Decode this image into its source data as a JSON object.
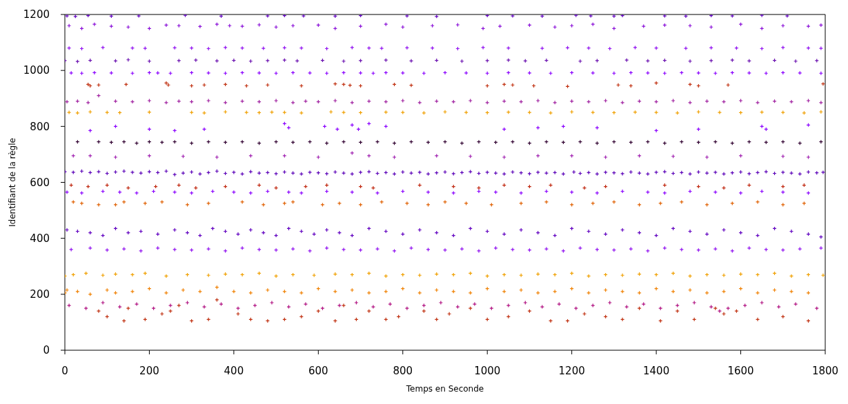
{
  "chart_data": {
    "type": "scatter",
    "xlabel": "Temps en Seconde",
    "ylabel": "Identifiant de la règle",
    "xlim": [
      0,
      1800
    ],
    "ylim": [
      0,
      1200
    ],
    "xticks": [
      0,
      200,
      400,
      600,
      800,
      1000,
      1200,
      1400,
      1600,
      1800
    ],
    "yticks": [
      0,
      200,
      400,
      600,
      800,
      1000,
      1200
    ],
    "marker": "cross",
    "series": [
      {
        "color": "#6000c0",
        "x": [
          5,
          25,
          55,
          110,
          175,
          285,
          370,
          480,
          520,
          565,
          640,
          700,
          810,
          880,
          1000,
          1060,
          1130,
          1210,
          1245,
          1300,
          1320,
          1420,
          1470,
          1530,
          1580,
          1650,
          1710
        ],
        "values": [
          1195,
          1193,
          1196,
          1194,
          1195,
          1197,
          1194,
          1195,
          1196,
          1195,
          1194,
          1196,
          1195,
          1193,
          1196,
          1195,
          1194,
          1197,
          1195,
          1194,
          1196,
          1195,
          1194,
          1196,
          1195,
          1197,
          1195
        ]
      },
      {
        "color": "#8a10d8",
        "x": [
          10,
          40,
          70,
          110,
          150,
          200,
          240,
          270,
          320,
          360,
          390,
          420,
          460,
          500,
          540,
          600,
          640,
          700,
          760,
          800,
          870,
          930,
          990,
          1030,
          1100,
          1160,
          1200,
          1250,
          1300,
          1370,
          1420,
          1480,
          1530,
          1600,
          1650,
          1700,
          1760,
          1790
        ],
        "values": [
          1160,
          1150,
          1165,
          1158,
          1155,
          1150,
          1162,
          1160,
          1157,
          1165,
          1160,
          1158,
          1163,
          1155,
          1160,
          1162,
          1150,
          1158,
          1165,
          1155,
          1160,
          1163,
          1150,
          1158,
          1162,
          1155,
          1160,
          1165,
          1150,
          1158,
          1162,
          1160,
          1155,
          1165,
          1150,
          1160,
          1158,
          1162
        ]
      },
      {
        "color": "#9010f0",
        "x": [
          10,
          40,
          90,
          160,
          190,
          260,
          300,
          340,
          380,
          420,
          470,
          520,
          560,
          620,
          680,
          720,
          750,
          810,
          870,
          930,
          990,
          1050,
          1130,
          1190,
          1240,
          1290,
          1350,
          1400,
          1470,
          1530,
          1590,
          1650,
          1700,
          1760,
          1790
        ],
        "values": [
          1080,
          1078,
          1082,
          1080,
          1079,
          1081,
          1080,
          1078,
          1082,
          1080,
          1079,
          1081,
          1080,
          1078,
          1082,
          1080,
          1079,
          1081,
          1080,
          1078,
          1082,
          1080,
          1079,
          1081,
          1080,
          1078,
          1082,
          1080,
          1079,
          1081,
          1080,
          1078,
          1082,
          1080,
          1079
        ]
      },
      {
        "color": "#6a10b0",
        "x": [
          0,
          30,
          60,
          120,
          150,
          200,
          270,
          310,
          360,
          400,
          440,
          480,
          520,
          550,
          610,
          660,
          700,
          760,
          820,
          880,
          940,
          1000,
          1050,
          1090,
          1140,
          1220,
          1260,
          1330,
          1380,
          1420,
          1480,
          1530,
          1580,
          1620,
          1680,
          1730,
          1780
        ],
        "values": [
          1035,
          1032,
          1036,
          1034,
          1038,
          1033,
          1035,
          1037,
          1034,
          1036,
          1033,
          1035,
          1037,
          1034,
          1036,
          1033,
          1035,
          1037,
          1034,
          1036,
          1033,
          1035,
          1037,
          1034,
          1036,
          1033,
          1035,
          1037,
          1034,
          1036,
          1033,
          1035,
          1037,
          1034,
          1036,
          1033,
          1035
        ]
      },
      {
        "color": "#8a00ff",
        "x": [
          15,
          40,
          70,
          110,
          160,
          200,
          220,
          250,
          300,
          340,
          380,
          420,
          460,
          500,
          540,
          580,
          620,
          660,
          700,
          730,
          760,
          800,
          850,
          900,
          950,
          1000,
          1050,
          1100,
          1150,
          1200,
          1250,
          1300,
          1340,
          1380,
          1420,
          1460,
          1500,
          1540,
          1580,
          1620,
          1660,
          1700,
          1740,
          1790
        ],
        "values": [
          991,
          990,
          992,
          991,
          990,
          992,
          991,
          990,
          992,
          991,
          990,
          992,
          991,
          990,
          992,
          991,
          990,
          992,
          991,
          990,
          992,
          991,
          990,
          992,
          991,
          990,
          992,
          991,
          990,
          992,
          991,
          990,
          992,
          991,
          990,
          992,
          991,
          990,
          992,
          991,
          990,
          992,
          991,
          990
        ]
      },
      {
        "color": "#c03010",
        "x": [
          55,
          60,
          80,
          145,
          240,
          245,
          300,
          330,
          380,
          430,
          480,
          560,
          640,
          660,
          675,
          700,
          780,
          820,
          1000,
          1040,
          1060,
          1110,
          1190,
          1310,
          1340,
          1400,
          1480,
          1500,
          1570,
          1795
        ],
        "values": [
          950,
          945,
          948,
          950,
          955,
          948,
          945,
          948,
          950,
          945,
          948,
          945,
          952,
          950,
          947,
          945,
          950,
          947,
          945,
          950,
          948,
          945,
          943,
          948,
          945,
          955,
          950,
          945,
          948,
          952
        ]
      },
      {
        "color": "#a020a0",
        "x": [
          5,
          30,
          55,
          80,
          120,
          160,
          200,
          240,
          270,
          300,
          340,
          380,
          420,
          460,
          500,
          540,
          570,
          600,
          640,
          680,
          720,
          760,
          800,
          840,
          880,
          920,
          960,
          1000,
          1040,
          1080,
          1120,
          1160,
          1200,
          1240,
          1280,
          1320,
          1360,
          1400,
          1440,
          1480,
          1520,
          1560,
          1600,
          1640,
          1680,
          1720,
          1760,
          1790
        ],
        "values": [
          888,
          890,
          885,
          910,
          890,
          888,
          892,
          885,
          890,
          888,
          892,
          885,
          890,
          888,
          892,
          885,
          890,
          888,
          892,
          885,
          890,
          888,
          892,
          885,
          890,
          888,
          892,
          885,
          890,
          888,
          892,
          885,
          890,
          888,
          892,
          885,
          890,
          888,
          892,
          885,
          890,
          888,
          892,
          885,
          890,
          888,
          892,
          885
        ]
      },
      {
        "color": "#f0a000",
        "x": [
          10,
          30,
          60,
          100,
          130,
          200,
          300,
          330,
          380,
          430,
          460,
          490,
          520,
          560,
          630,
          660,
          700,
          760,
          800,
          850,
          900,
          950,
          1000,
          1050,
          1100,
          1150,
          1200,
          1250,
          1300,
          1350,
          1400,
          1450,
          1500,
          1550,
          1600,
          1650,
          1700,
          1750,
          1790
        ],
        "values": [
          850,
          848,
          852,
          850,
          849,
          851,
          850,
          848,
          852,
          850,
          849,
          851,
          850,
          848,
          852,
          850,
          849,
          851,
          850,
          848,
          852,
          850,
          849,
          851,
          850,
          848,
          852,
          850,
          849,
          851,
          850,
          848,
          852,
          850,
          849,
          851,
          850,
          848,
          852
        ]
      },
      {
        "color": "#8a00ff",
        "x": [
          60,
          120,
          200,
          260,
          330,
          520,
          530,
          615,
          645,
          680,
          695,
          720,
          760,
          1040,
          1120,
          1180,
          1260,
          1400,
          1500,
          1650,
          1660,
          1760
        ],
        "values": [
          785,
          800,
          790,
          785,
          790,
          810,
          795,
          800,
          790,
          805,
          790,
          810,
          800,
          790,
          795,
          800,
          795,
          785,
          790,
          800,
          790,
          805
        ]
      },
      {
        "color": "#300030",
        "x": [
          30,
          80,
          110,
          140,
          170,
          200,
          230,
          260,
          300,
          340,
          380,
          420,
          460,
          500,
          540,
          580,
          620,
          660,
          700,
          740,
          780,
          820,
          860,
          900,
          940,
          980,
          1020,
          1060,
          1100,
          1140,
          1180,
          1220,
          1260,
          1300,
          1340,
          1380,
          1420,
          1460,
          1500,
          1540,
          1580,
          1620,
          1660,
          1700,
          1740,
          1790
        ],
        "values": [
          745,
          745,
          743,
          745,
          740,
          745,
          743,
          745,
          740,
          745,
          743,
          745,
          740,
          745,
          743,
          745,
          740,
          745,
          743,
          745,
          740,
          745,
          743,
          745,
          740,
          745,
          743,
          745,
          740,
          745,
          743,
          745,
          740,
          745,
          743,
          745,
          740,
          745,
          743,
          745,
          740,
          745,
          743,
          745,
          740,
          745
        ]
      },
      {
        "color": "#a020b0",
        "x": [
          20,
          60,
          120,
          200,
          280,
          360,
          440,
          520,
          600,
          680,
          720,
          780,
          880,
          960,
          1040,
          1120,
          1200,
          1280,
          1360,
          1440,
          1520,
          1600,
          1700,
          1760
        ],
        "values": [
          695,
          695,
          690,
          695,
          693,
          690,
          695,
          695,
          690,
          705,
          695,
          690,
          695,
          693,
          690,
          695,
          695,
          690,
          695,
          693,
          690,
          695,
          693,
          690
        ]
      },
      {
        "color": "#5a00b8",
        "x": [
          0,
          20,
          40,
          60,
          80,
          100,
          120,
          140,
          160,
          180,
          200,
          220,
          240,
          260,
          280,
          300,
          320,
          340,
          360,
          380,
          400,
          420,
          440,
          460,
          480,
          500,
          520,
          540,
          560,
          580,
          600,
          620,
          640,
          660,
          680,
          700,
          720,
          740,
          760,
          780,
          800,
          820,
          840,
          860,
          880,
          900,
          920,
          940,
          960,
          980,
          1000,
          1020,
          1040,
          1060,
          1080,
          1100,
          1120,
          1140,
          1160,
          1180,
          1205,
          1220,
          1240,
          1260,
          1280,
          1300,
          1320,
          1340,
          1360,
          1380,
          1400,
          1420,
          1440,
          1460,
          1480,
          1500,
          1520,
          1540,
          1560,
          1580,
          1600,
          1620,
          1640,
          1660,
          1680,
          1700,
          1720,
          1740,
          1760,
          1780,
          1795
        ],
        "values": [
          638,
          636,
          640,
          635,
          638,
          632,
          637,
          640,
          636,
          633,
          638,
          635,
          640,
          628,
          633,
          637,
          630,
          635,
          640,
          632,
          636,
          630,
          638,
          633,
          635,
          631,
          637,
          633,
          630,
          636,
          634,
          631,
          637,
          633,
          630,
          636,
          638,
          632,
          635,
          630,
          637,
          633,
          636,
          630,
          634,
          637,
          631,
          635,
          638,
          632,
          636,
          633,
          630,
          637,
          634,
          631,
          636,
          633,
          635,
          630,
          637,
          632,
          635,
          630,
          636,
          634,
          631,
          637,
          633,
          630,
          636,
          638,
          632,
          635,
          630,
          637,
          633,
          636,
          630,
          634,
          637,
          631,
          635,
          638,
          632,
          636,
          633,
          630,
          637,
          634,
          636
        ]
      },
      {
        "color": "#c02810",
        "x": [
          15,
          55,
          100,
          150,
          215,
          270,
          310,
          380,
          460,
          500,
          570,
          620,
          700,
          730,
          840,
          920,
          980,
          1040,
          1100,
          1150,
          1230,
          1280,
          1420,
          1500,
          1560,
          1620,
          1700,
          1750
        ],
        "values": [
          590,
          585,
          590,
          580,
          585,
          590,
          580,
          585,
          590,
          580,
          585,
          590,
          585,
          580,
          590,
          585,
          580,
          590,
          585,
          590,
          580,
          585,
          590,
          585,
          580,
          590,
          585,
          590
        ]
      },
      {
        "color": "#8a00ff",
        "x": [
          5,
          40,
          90,
          130,
          170,
          210,
          260,
          300,
          350,
          400,
          440,
          480,
          530,
          560,
          620,
          680,
          740,
          800,
          860,
          920,
          980,
          1020,
          1080,
          1140,
          1200,
          1260,
          1320,
          1380,
          1420,
          1480,
          1540,
          1600,
          1650,
          1700,
          1760
        ],
        "values": [
          565,
          562,
          568,
          565,
          562,
          568,
          565,
          562,
          568,
          565,
          562,
          568,
          565,
          562,
          568,
          565,
          562,
          568,
          565,
          562,
          568,
          565,
          562,
          568,
          565,
          562,
          568,
          565,
          562,
          568,
          565,
          562,
          568,
          565,
          562
        ]
      },
      {
        "color": "#e06000",
        "x": [
          20,
          40,
          80,
          120,
          140,
          190,
          230,
          290,
          340,
          420,
          470,
          520,
          540,
          610,
          650,
          700,
          750,
          810,
          860,
          900,
          950,
          1010,
          1080,
          1140,
          1200,
          1250,
          1300,
          1360,
          1410,
          1460,
          1520,
          1580,
          1640,
          1700,
          1750
        ],
        "values": [
          530,
          525,
          520,
          520,
          530,
          525,
          530,
          520,
          525,
          530,
          520,
          525,
          530,
          520,
          525,
          520,
          530,
          525,
          520,
          530,
          525,
          520,
          525,
          530,
          520,
          525,
          530,
          520,
          525,
          530,
          520,
          525,
          530,
          520,
          525
        ]
      },
      {
        "color": "#6000c0",
        "x": [
          5,
          30,
          60,
          90,
          120,
          150,
          180,
          220,
          260,
          290,
          320,
          350,
          380,
          410,
          440,
          470,
          500,
          530,
          560,
          590,
          620,
          650,
          680,
          720,
          760,
          800,
          840,
          880,
          920,
          960,
          1000,
          1040,
          1080,
          1120,
          1160,
          1200,
          1240,
          1280,
          1320,
          1360,
          1400,
          1440,
          1480,
          1520,
          1560,
          1600,
          1640,
          1680,
          1720,
          1760,
          1790
        ],
        "values": [
          430,
          425,
          420,
          410,
          435,
          420,
          425,
          415,
          430,
          420,
          410,
          435,
          425,
          415,
          430,
          420,
          410,
          435,
          425,
          415,
          430,
          420,
          410,
          435,
          425,
          415,
          430,
          420,
          410,
          435,
          425,
          415,
          430,
          420,
          410,
          435,
          425,
          415,
          430,
          420,
          410,
          435,
          425,
          415,
          430,
          420,
          410,
          435,
          425,
          415,
          405
        ]
      },
      {
        "color": "#9010f0",
        "x": [
          15,
          60,
          100,
          140,
          180,
          220,
          260,
          300,
          340,
          380,
          420,
          460,
          500,
          540,
          580,
          620,
          660,
          700,
          740,
          780,
          820,
          860,
          900,
          940,
          980,
          1020,
          1060,
          1100,
          1140,
          1180,
          1220,
          1260,
          1300,
          1340,
          1380,
          1420,
          1460,
          1500,
          1540,
          1580,
          1620,
          1660,
          1700,
          1740,
          1790
        ],
        "values": [
          360,
          365,
          358,
          362,
          355,
          365,
          360,
          358,
          362,
          355,
          365,
          360,
          358,
          362,
          355,
          365,
          360,
          358,
          362,
          355,
          365,
          360,
          358,
          362,
          355,
          365,
          360,
          358,
          362,
          355,
          365,
          360,
          358,
          362,
          355,
          365,
          360,
          358,
          362,
          355,
          365,
          360,
          358,
          362,
          365
        ]
      },
      {
        "color": "#f0a000",
        "x": [
          0,
          20,
          50,
          90,
          120,
          160,
          190,
          240,
          290,
          340,
          380,
          420,
          460,
          500,
          540,
          590,
          640,
          680,
          720,
          760,
          800,
          840,
          880,
          920,
          960,
          1000,
          1040,
          1080,
          1120,
          1160,
          1200,
          1240,
          1280,
          1320,
          1360,
          1400,
          1440,
          1480,
          1520,
          1560,
          1600,
          1640,
          1680,
          1720,
          1760,
          1795
        ],
        "values": [
          265,
          270,
          275,
          268,
          272,
          270,
          275,
          265,
          270,
          268,
          272,
          270,
          275,
          265,
          270,
          268,
          272,
          270,
          275,
          265,
          270,
          268,
          272,
          270,
          275,
          265,
          270,
          268,
          272,
          270,
          275,
          265,
          270,
          268,
          272,
          270,
          275,
          265,
          270,
          268,
          272,
          270,
          275,
          265,
          270,
          268
        ]
      },
      {
        "color": "#f08000",
        "x": [
          0,
          5,
          30,
          60,
          100,
          120,
          160,
          200,
          240,
          280,
          320,
          360,
          400,
          440,
          480,
          520,
          560,
          600,
          640,
          680,
          720,
          760,
          800,
          840,
          880,
          920,
          960,
          1000,
          1040,
          1080,
          1120,
          1160,
          1200,
          1240,
          1280,
          1320,
          1360,
          1400,
          1440,
          1480,
          1520,
          1560,
          1600,
          1640,
          1680,
          1720,
          1760
        ],
        "values": [
          205,
          215,
          210,
          200,
          215,
          205,
          210,
          220,
          205,
          215,
          210,
          225,
          210,
          205,
          215,
          210,
          205,
          220,
          210,
          215,
          205,
          210,
          220,
          205,
          215,
          210,
          205,
          220,
          210,
          215,
          205,
          210,
          220,
          205,
          215,
          210,
          205,
          220,
          210,
          215,
          205,
          210,
          220,
          205,
          215,
          210,
          205
        ]
      },
      {
        "color": "#b01080",
        "x": [
          10,
          50,
          90,
          130,
          170,
          210,
          250,
          290,
          330,
          370,
          410,
          450,
          490,
          530,
          570,
          610,
          650,
          690,
          730,
          770,
          810,
          850,
          890,
          930,
          970,
          1010,
          1050,
          1090,
          1130,
          1170,
          1210,
          1250,
          1290,
          1330,
          1370,
          1410,
          1450,
          1490,
          1530,
          1550,
          1570,
          1610,
          1650,
          1690,
          1730,
          1780
        ],
        "values": [
          160,
          150,
          170,
          155,
          165,
          150,
          160,
          170,
          155,
          165,
          150,
          160,
          170,
          155,
          165,
          150,
          160,
          170,
          155,
          165,
          150,
          160,
          170,
          155,
          165,
          150,
          160,
          170,
          155,
          165,
          150,
          160,
          170,
          155,
          165,
          150,
          160,
          170,
          155,
          140,
          150,
          160,
          170,
          155,
          165,
          150
        ]
      },
      {
        "color": "#c03010",
        "x": [
          80,
          100,
          140,
          150,
          190,
          230,
          250,
          270,
          300,
          340,
          360,
          410,
          440,
          480,
          520,
          560,
          600,
          640,
          660,
          690,
          720,
          760,
          790,
          850,
          880,
          910,
          960,
          1000,
          1050,
          1100,
          1150,
          1190,
          1230,
          1280,
          1320,
          1360,
          1410,
          1450,
          1490,
          1540,
          1560,
          1590,
          1640,
          1700,
          1760
        ],
        "values": [
          140,
          120,
          105,
          150,
          110,
          130,
          140,
          160,
          105,
          110,
          180,
          130,
          110,
          105,
          110,
          120,
          140,
          105,
          160,
          110,
          140,
          110,
          120,
          140,
          110,
          130,
          150,
          110,
          120,
          140,
          105,
          105,
          130,
          120,
          110,
          150,
          105,
          140,
          110,
          150,
          130,
          140,
          110,
          120,
          105
        ]
      }
    ]
  }
}
